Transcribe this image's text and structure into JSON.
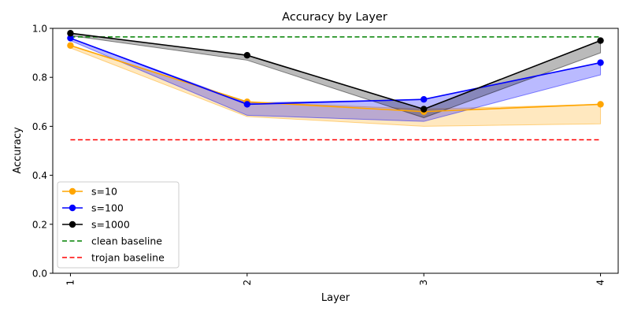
{
  "chart_data": {
    "type": "line",
    "title": "Accuracy by Layer",
    "xlabel": "Layer",
    "ylabel": "Accuracy",
    "x": [
      1,
      2,
      3,
      4
    ],
    "x_tick_labels": [
      "1",
      "2",
      "3",
      "4"
    ],
    "ylim": [
      0.0,
      1.0
    ],
    "y_ticks": [
      0.0,
      0.2,
      0.4,
      0.6,
      0.8,
      1.0
    ],
    "y_tick_labels": [
      "0.0",
      "0.2",
      "0.4",
      "0.6",
      "0.8",
      "1.0"
    ],
    "grid": false,
    "legend_position": "lower-left",
    "series": [
      {
        "name": "s=10",
        "color": "#ffa500",
        "values": [
          0.93,
          0.7,
          0.66,
          0.69
        ],
        "band_low": [
          0.92,
          0.64,
          0.6,
          0.61
        ],
        "band_high": [
          0.93,
          0.7,
          0.67,
          0.69
        ]
      },
      {
        "name": "s=100",
        "color": "#0000ff",
        "values": [
          0.96,
          0.69,
          0.71,
          0.86
        ],
        "band_low": [
          0.95,
          0.645,
          0.62,
          0.81
        ],
        "band_high": [
          0.96,
          0.695,
          0.71,
          0.86
        ]
      },
      {
        "name": "s=1000",
        "color": "#000000",
        "values": [
          0.98,
          0.89,
          0.67,
          0.95
        ],
        "band_low": [
          0.97,
          0.87,
          0.635,
          0.9
        ],
        "band_high": [
          0.98,
          0.89,
          0.67,
          0.95
        ]
      }
    ],
    "baselines": [
      {
        "name": "clean baseline",
        "color": "#008000",
        "value": 0.965
      },
      {
        "name": "trojan baseline",
        "color": "#ff0000",
        "value": 0.545
      }
    ]
  }
}
